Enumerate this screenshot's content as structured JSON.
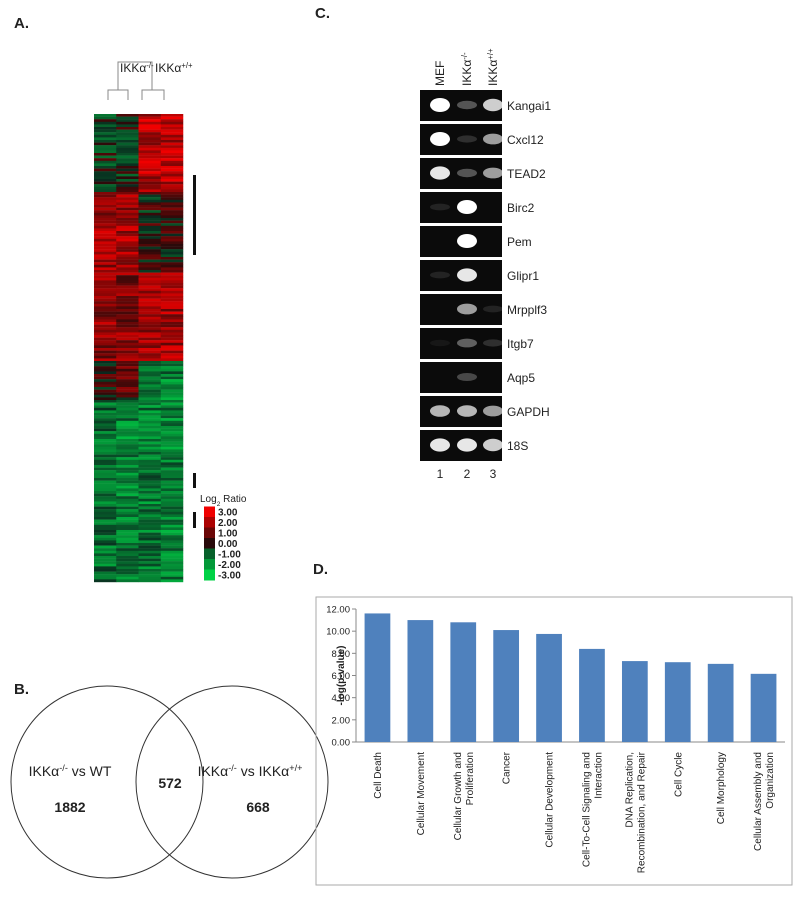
{
  "panels": {
    "a": {
      "label": "A.",
      "columns": [
        [
          {
            "text": "IKKα"
          },
          {
            "text": "-/-",
            "script": "super"
          }
        ],
        [
          {
            "text": "IKKα"
          },
          {
            "text": "+/+",
            "script": "super"
          }
        ]
      ],
      "legend": {
        "title": [
          {
            "text": "Log"
          },
          {
            "text": "2",
            "script": "sub"
          },
          {
            "text": " Ratio"
          }
        ],
        "ticks": [
          {
            "value": 3,
            "label": "3.00"
          },
          {
            "value": 2,
            "label": "2.00"
          },
          {
            "value": 1,
            "label": "1.00"
          },
          {
            "value": 0,
            "label": "0.00"
          },
          {
            "value": -1,
            "label": "-1.00"
          },
          {
            "value": -2,
            "label": "-2.00"
          },
          {
            "value": -3,
            "label": "-3.00"
          }
        ]
      }
    },
    "b": {
      "label": "B.",
      "left": {
        "title": [
          {
            "text": "IKKα"
          },
          {
            "text": "-/-",
            "script": "super"
          },
          {
            "text": " vs WT"
          }
        ],
        "count": "1882"
      },
      "overlap": {
        "count": "572"
      },
      "right": {
        "title": [
          {
            "text": "IKKα"
          },
          {
            "text": "-/-",
            "script": "super"
          },
          {
            "text": " vs IKKα"
          },
          {
            "text": "+/+",
            "script": "super"
          }
        ],
        "count": "668"
      }
    },
    "c": {
      "label": "C.",
      "lanes": [
        [
          {
            "text": "MEF"
          }
        ],
        [
          {
            "text": "IKKα"
          },
          {
            "text": "-/-",
            "script": "super"
          }
        ],
        [
          {
            "text": "IKKα"
          },
          {
            "text": "+/+",
            "script": "super"
          }
        ]
      ],
      "lane_numbers": [
        "1",
        "2",
        "3"
      ],
      "genes": [
        "Kangai1",
        "Cxcl12",
        "TEAD2",
        "Birc2",
        "Pem",
        "Glipr1",
        "Mrpplf3",
        "Itgb7",
        "Aqp5",
        "GAPDH",
        "18S"
      ]
    },
    "d": {
      "label": "D."
    }
  },
  "chart_data": {
    "type": "bar",
    "y_label": "-log(p-value)",
    "categories": [
      "Cell Death",
      "Cellular Movement",
      "Cellular Growth and\nProliferation",
      "Cancer",
      "Cellular Development",
      "Cell-To-Cell Signaling and\nInteraction",
      "DNA Replication,\nRecombination, and Repair",
      "Cell Cycle",
      "Cell Morphology",
      "Cellular Assembly and\nOrganization"
    ],
    "values": [
      11.6,
      11.0,
      10.8,
      10.1,
      9.75,
      8.4,
      7.3,
      7.2,
      7.05,
      6.15
    ],
    "color": "#4f81bd",
    "ylim": [
      0,
      12
    ],
    "yticks": [
      {
        "value": 0,
        "label": "0.00"
      },
      {
        "value": 2,
        "label": "2.00"
      },
      {
        "value": 4,
        "label": "4.00"
      },
      {
        "value": 6,
        "label": "6.00"
      },
      {
        "value": 8,
        "label": "8.00"
      },
      {
        "value": 10,
        "label": "10.00"
      },
      {
        "value": 12,
        "label": "12.00"
      }
    ],
    "grid": false
  }
}
